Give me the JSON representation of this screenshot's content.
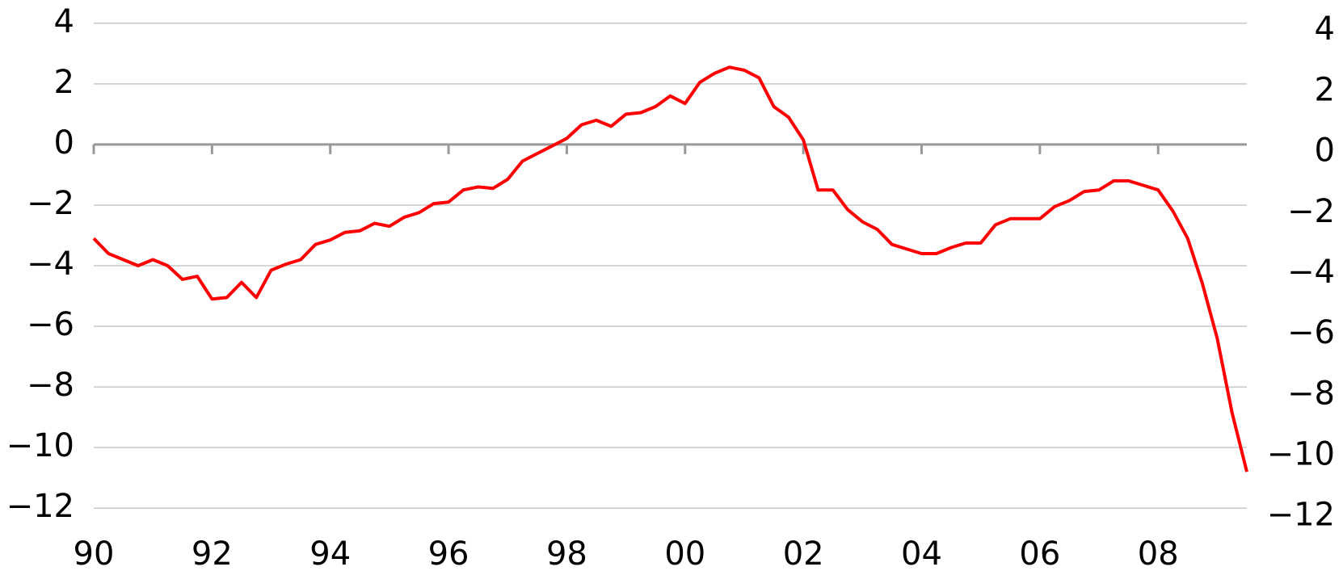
{
  "chart_data": {
    "type": "line",
    "x": [
      1990,
      1990.25,
      1990.5,
      1990.75,
      1991,
      1991.25,
      1991.5,
      1991.75,
      1992,
      1992.25,
      1992.5,
      1992.75,
      1993,
      1993.25,
      1993.5,
      1993.75,
      1994,
      1994.25,
      1994.5,
      1994.75,
      1995,
      1995.25,
      1995.5,
      1995.75,
      1996,
      1996.25,
      1996.5,
      1996.75,
      1997,
      1997.25,
      1997.5,
      1997.75,
      1998,
      1998.25,
      1998.5,
      1998.75,
      1999,
      1999.25,
      1999.5,
      1999.75,
      2000,
      2000.25,
      2000.5,
      2000.75,
      2001,
      2001.25,
      2001.5,
      2001.75,
      2002,
      2002.25,
      2002.5,
      2002.75,
      2003,
      2003.25,
      2003.5,
      2003.75,
      2004,
      2004.25,
      2004.5,
      2004.75,
      2005,
      2005.25,
      2005.5,
      2005.75,
      2006,
      2006.25,
      2006.5,
      2006.75,
      2007,
      2007.25,
      2007.5,
      2007.75,
      2008,
      2008.25,
      2008.5,
      2008.75,
      2009,
      2009.25,
      2009.5
    ],
    "series": [
      {
        "color": "#ff0000",
        "values": [
          -3.1,
          -3.6,
          -3.8,
          -4.0,
          -3.8,
          -4.0,
          -4.45,
          -4.35,
          -5.1,
          -5.05,
          -4.55,
          -5.05,
          -4.15,
          -3.95,
          -3.8,
          -3.3,
          -3.15,
          -2.9,
          -2.85,
          -2.6,
          -2.7,
          -2.4,
          -2.25,
          -1.95,
          -1.9,
          -1.5,
          -1.4,
          -1.45,
          -1.15,
          -0.55,
          -0.3,
          -0.05,
          0.2,
          0.65,
          0.8,
          0.6,
          1.0,
          1.05,
          1.25,
          1.6,
          1.35,
          2.05,
          2.35,
          2.55,
          2.45,
          2.2,
          1.25,
          0.9,
          0.15,
          -1.5,
          -1.5,
          -2.15,
          -2.55,
          -2.8,
          -3.3,
          -3.45,
          -3.6,
          -3.6,
          -3.4,
          -3.25,
          -3.25,
          -2.65,
          -2.45,
          -2.45,
          -2.45,
          -2.05,
          -1.85,
          -1.55,
          -1.5,
          -1.2,
          -1.2,
          -1.35,
          -1.5,
          -2.2,
          -3.1,
          -4.6,
          -6.4,
          -8.85,
          -10.8
        ]
      }
    ],
    "xlim": [
      1990,
      2009.5
    ],
    "xticks": [
      {
        "value": 1990,
        "label": "90"
      },
      {
        "value": 1992,
        "label": "92"
      },
      {
        "value": 1994,
        "label": "94"
      },
      {
        "value": 1996,
        "label": "96"
      },
      {
        "value": 1998,
        "label": "98"
      },
      {
        "value": 2000,
        "label": "00"
      },
      {
        "value": 2002,
        "label": "02"
      },
      {
        "value": 2004,
        "label": "04"
      },
      {
        "value": 2006,
        "label": "06"
      },
      {
        "value": 2008,
        "label": "08"
      }
    ],
    "ylim": [
      -12.5,
      4.5
    ],
    "yticks": [
      {
        "value": -12,
        "label": "−12"
      },
      {
        "value": -10,
        "label": "−10"
      },
      {
        "value": -8,
        "label": "−8"
      },
      {
        "value": -6,
        "label": "−6"
      },
      {
        "value": -4,
        "label": "−4"
      },
      {
        "value": -2,
        "label": "−2"
      },
      0,
      2,
      4
    ],
    "y2lim": [
      -12.22,
      4.75
    ],
    "y2ticks": [
      {
        "value": -12,
        "label": "−12"
      },
      {
        "value": -10,
        "label": "−10"
      },
      {
        "value": -8,
        "label": "−8"
      },
      {
        "value": -6,
        "label": "−6"
      },
      {
        "value": -4,
        "label": "−4"
      },
      {
        "value": -2,
        "label": "−2"
      },
      0,
      2,
      4
    ],
    "grid": true
  }
}
